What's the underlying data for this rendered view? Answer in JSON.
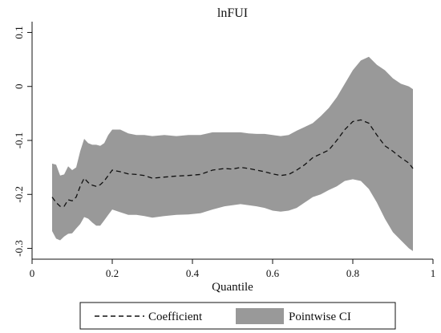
{
  "chart_data": {
    "type": "area",
    "title": "lnFUI",
    "xlabel": "Quantile",
    "ylabel": "",
    "xlim": [
      0,
      1
    ],
    "ylim": [
      -0.32,
      0.12
    ],
    "xticks": [
      0,
      0.2,
      0.4,
      0.6,
      0.8,
      1
    ],
    "xtick_labels": [
      "0",
      "0.2",
      "0.4",
      "0.6",
      "0.8",
      "1"
    ],
    "yticks": [
      0.1,
      0,
      -0.1,
      -0.2,
      -0.3
    ],
    "ytick_labels": [
      "0.1",
      "0",
      "-0.1",
      "-0.2",
      "-0.3"
    ],
    "grid": false,
    "legend_position": "bottom",
    "colors": {
      "band": "#999999",
      "line": "#111111"
    },
    "x": [
      0.05,
      0.06,
      0.07,
      0.08,
      0.09,
      0.1,
      0.11,
      0.12,
      0.13,
      0.14,
      0.15,
      0.16,
      0.17,
      0.18,
      0.19,
      0.2,
      0.22,
      0.24,
      0.26,
      0.28,
      0.3,
      0.33,
      0.36,
      0.39,
      0.42,
      0.45,
      0.48,
      0.5,
      0.52,
      0.54,
      0.56,
      0.58,
      0.6,
      0.62,
      0.64,
      0.66,
      0.68,
      0.7,
      0.72,
      0.74,
      0.76,
      0.78,
      0.8,
      0.82,
      0.84,
      0.86,
      0.88,
      0.9,
      0.92,
      0.94,
      0.95
    ],
    "series": [
      {
        "name": "Coefficient",
        "style": "dashed",
        "values": [
          -0.205,
          -0.215,
          -0.222,
          -0.222,
          -0.21,
          -0.212,
          -0.205,
          -0.185,
          -0.17,
          -0.178,
          -0.183,
          -0.185,
          -0.182,
          -0.175,
          -0.165,
          -0.155,
          -0.158,
          -0.162,
          -0.163,
          -0.165,
          -0.17,
          -0.168,
          -0.166,
          -0.165,
          -0.163,
          -0.155,
          -0.152,
          -0.153,
          -0.15,
          -0.152,
          -0.155,
          -0.158,
          -0.162,
          -0.165,
          -0.163,
          -0.155,
          -0.145,
          -0.132,
          -0.125,
          -0.118,
          -0.1,
          -0.08,
          -0.065,
          -0.062,
          -0.068,
          -0.09,
          -0.11,
          -0.12,
          -0.132,
          -0.142,
          -0.152
        ]
      },
      {
        "name": "Pointwise CI",
        "type": "band",
        "upper": [
          -0.143,
          -0.145,
          -0.165,
          -0.163,
          -0.148,
          -0.155,
          -0.15,
          -0.12,
          -0.097,
          -0.105,
          -0.108,
          -0.108,
          -0.11,
          -0.105,
          -0.09,
          -0.08,
          -0.08,
          -0.087,
          -0.09,
          -0.09,
          -0.092,
          -0.09,
          -0.092,
          -0.09,
          -0.09,
          -0.085,
          -0.085,
          -0.085,
          -0.085,
          -0.087,
          -0.088,
          -0.088,
          -0.09,
          -0.092,
          -0.09,
          -0.082,
          -0.075,
          -0.068,
          -0.055,
          -0.04,
          -0.02,
          0.005,
          0.03,
          0.048,
          0.055,
          0.04,
          0.03,
          0.015,
          0.005,
          0.0,
          -0.005
        ],
        "lower": [
          -0.268,
          -0.282,
          -0.285,
          -0.278,
          -0.273,
          -0.272,
          -0.263,
          -0.255,
          -0.242,
          -0.245,
          -0.252,
          -0.258,
          -0.258,
          -0.248,
          -0.238,
          -0.228,
          -0.233,
          -0.238,
          -0.238,
          -0.24,
          -0.243,
          -0.24,
          -0.238,
          -0.237,
          -0.235,
          -0.228,
          -0.222,
          -0.22,
          -0.218,
          -0.22,
          -0.222,
          -0.225,
          -0.23,
          -0.232,
          -0.23,
          -0.225,
          -0.215,
          -0.205,
          -0.2,
          -0.192,
          -0.185,
          -0.175,
          -0.172,
          -0.175,
          -0.19,
          -0.215,
          -0.245,
          -0.27,
          -0.285,
          -0.3,
          -0.305
        ]
      }
    ]
  }
}
